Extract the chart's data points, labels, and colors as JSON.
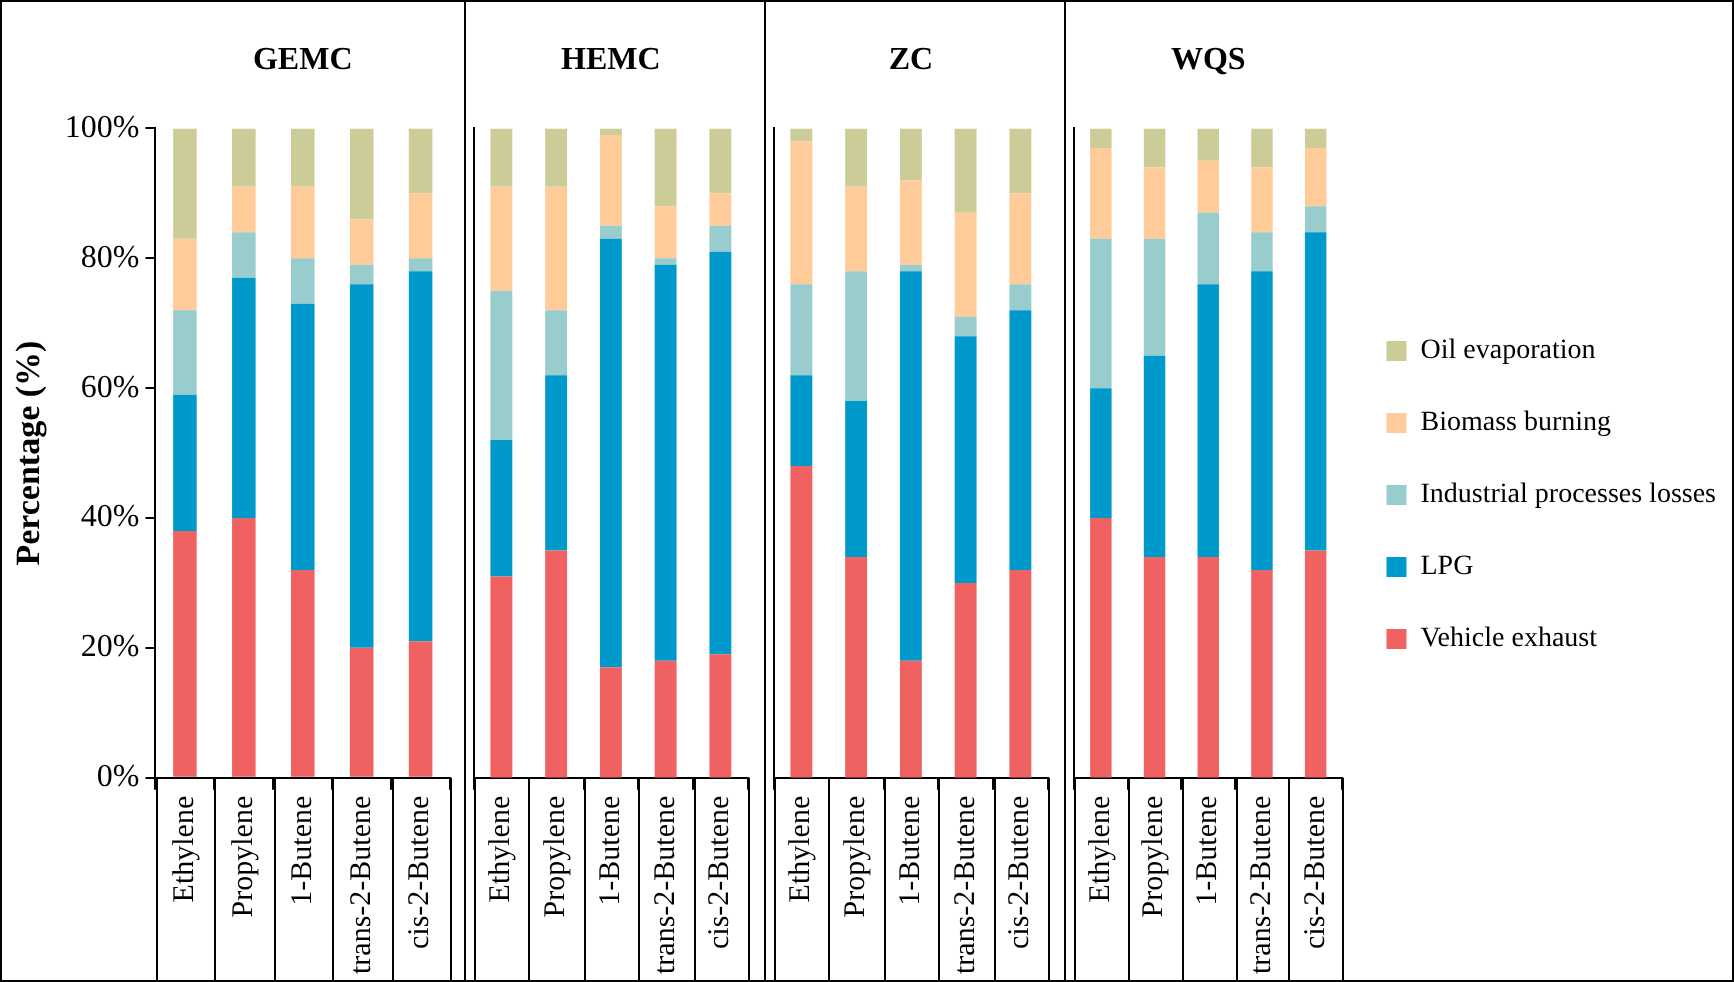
{
  "chart_data": [
    {
      "type": "bar",
      "stacked": true,
      "title": "GEMC",
      "ylabel": "Percentage (%)",
      "categories": [
        "Ethylene",
        "Propylene",
        "1-Butene",
        "trans-2-Butene",
        "cis-2-Butene"
      ],
      "ylim": [
        0,
        100
      ],
      "yticks": [
        {
          "value": 0,
          "label": "0%"
        },
        {
          "value": 20,
          "label": "20%"
        },
        {
          "value": 40,
          "label": "40%"
        },
        {
          "value": 60,
          "label": "60%"
        },
        {
          "value": 80,
          "label": "80%"
        },
        {
          "value": 100,
          "label": "100%"
        }
      ],
      "grid": false,
      "legend": false,
      "series": [
        {
          "color": "#f06262",
          "values": [
            38,
            40,
            32,
            20,
            21
          ]
        },
        {
          "color": "#0099cc",
          "values": [
            21,
            37,
            41,
            56,
            57
          ]
        },
        {
          "color": "#99cccc",
          "values": [
            13,
            7,
            7,
            3,
            2
          ]
        },
        {
          "color": "#ffcc99",
          "values": [
            11,
            7,
            11,
            7,
            10
          ]
        },
        {
          "color": "#cccc99",
          "values": [
            17,
            9,
            9,
            14,
            10
          ]
        }
      ]
    },
    {
      "type": "bar",
      "stacked": true,
      "title": "HEMC",
      "categories": [
        "Ethylene",
        "Propylene",
        "1-Butene",
        "trans-2-Butene",
        "cis-2-Butene"
      ],
      "ylim": [
        0,
        100
      ],
      "tick_labels": "x",
      "grid": false,
      "legend": false,
      "series": [
        {
          "color": "#f06262",
          "values": [
            31,
            35,
            17,
            18,
            19
          ]
        },
        {
          "color": "#0099cc",
          "values": [
            21,
            27,
            66,
            61,
            62
          ]
        },
        {
          "color": "#99cccc",
          "values": [
            23,
            10,
            2,
            1,
            4
          ]
        },
        {
          "color": "#ffcc99",
          "values": [
            16,
            19,
            14,
            8,
            5
          ]
        },
        {
          "color": "#cccc99",
          "values": [
            9,
            9,
            1,
            12,
            10
          ]
        }
      ]
    },
    {
      "type": "bar",
      "stacked": true,
      "title": "ZC",
      "categories": [
        "Ethylene",
        "Propylene",
        "1-Butene",
        "trans-2-Butene",
        "cis-2-Butene"
      ],
      "ylim": [
        0,
        100
      ],
      "tick_labels": "x",
      "grid": false,
      "legend": false,
      "series": [
        {
          "color": "#f06262",
          "values": [
            48,
            34,
            18,
            30,
            32
          ]
        },
        {
          "color": "#0099cc",
          "values": [
            14,
            24,
            60,
            38,
            40
          ]
        },
        {
          "color": "#99cccc",
          "values": [
            14,
            20,
            1,
            3,
            4
          ]
        },
        {
          "color": "#ffcc99",
          "values": [
            22,
            13,
            13,
            16,
            14
          ]
        },
        {
          "color": "#cccc99",
          "values": [
            2,
            9,
            8,
            13,
            10
          ]
        }
      ]
    },
    {
      "type": "bar",
      "stacked": true,
      "title": "WQS",
      "categories": [
        "Ethylene",
        "Propylene",
        "1-Butene",
        "trans-2-Butene",
        "cis-2-Butene"
      ],
      "ylim": [
        0,
        100
      ],
      "tick_labels": "x",
      "grid": false,
      "legend": "right",
      "series": [
        {
          "name": "Vehicle exhaust",
          "color": "#f06262",
          "values": [
            40,
            34,
            34,
            32,
            35
          ]
        },
        {
          "name": "LPG",
          "color": "#0099cc",
          "values": [
            20,
            31,
            42,
            46,
            49
          ]
        },
        {
          "name": "Industrial processes losses",
          "color": "#99cccc",
          "values": [
            23,
            18,
            11,
            6,
            4
          ]
        },
        {
          "name": "Biomass burning",
          "color": "#ffcc99",
          "values": [
            14,
            11,
            8,
            10,
            9
          ]
        },
        {
          "name": "Oil evaporation",
          "color": "#cccc99",
          "values": [
            3,
            6,
            5,
            6,
            3
          ]
        }
      ]
    }
  ]
}
